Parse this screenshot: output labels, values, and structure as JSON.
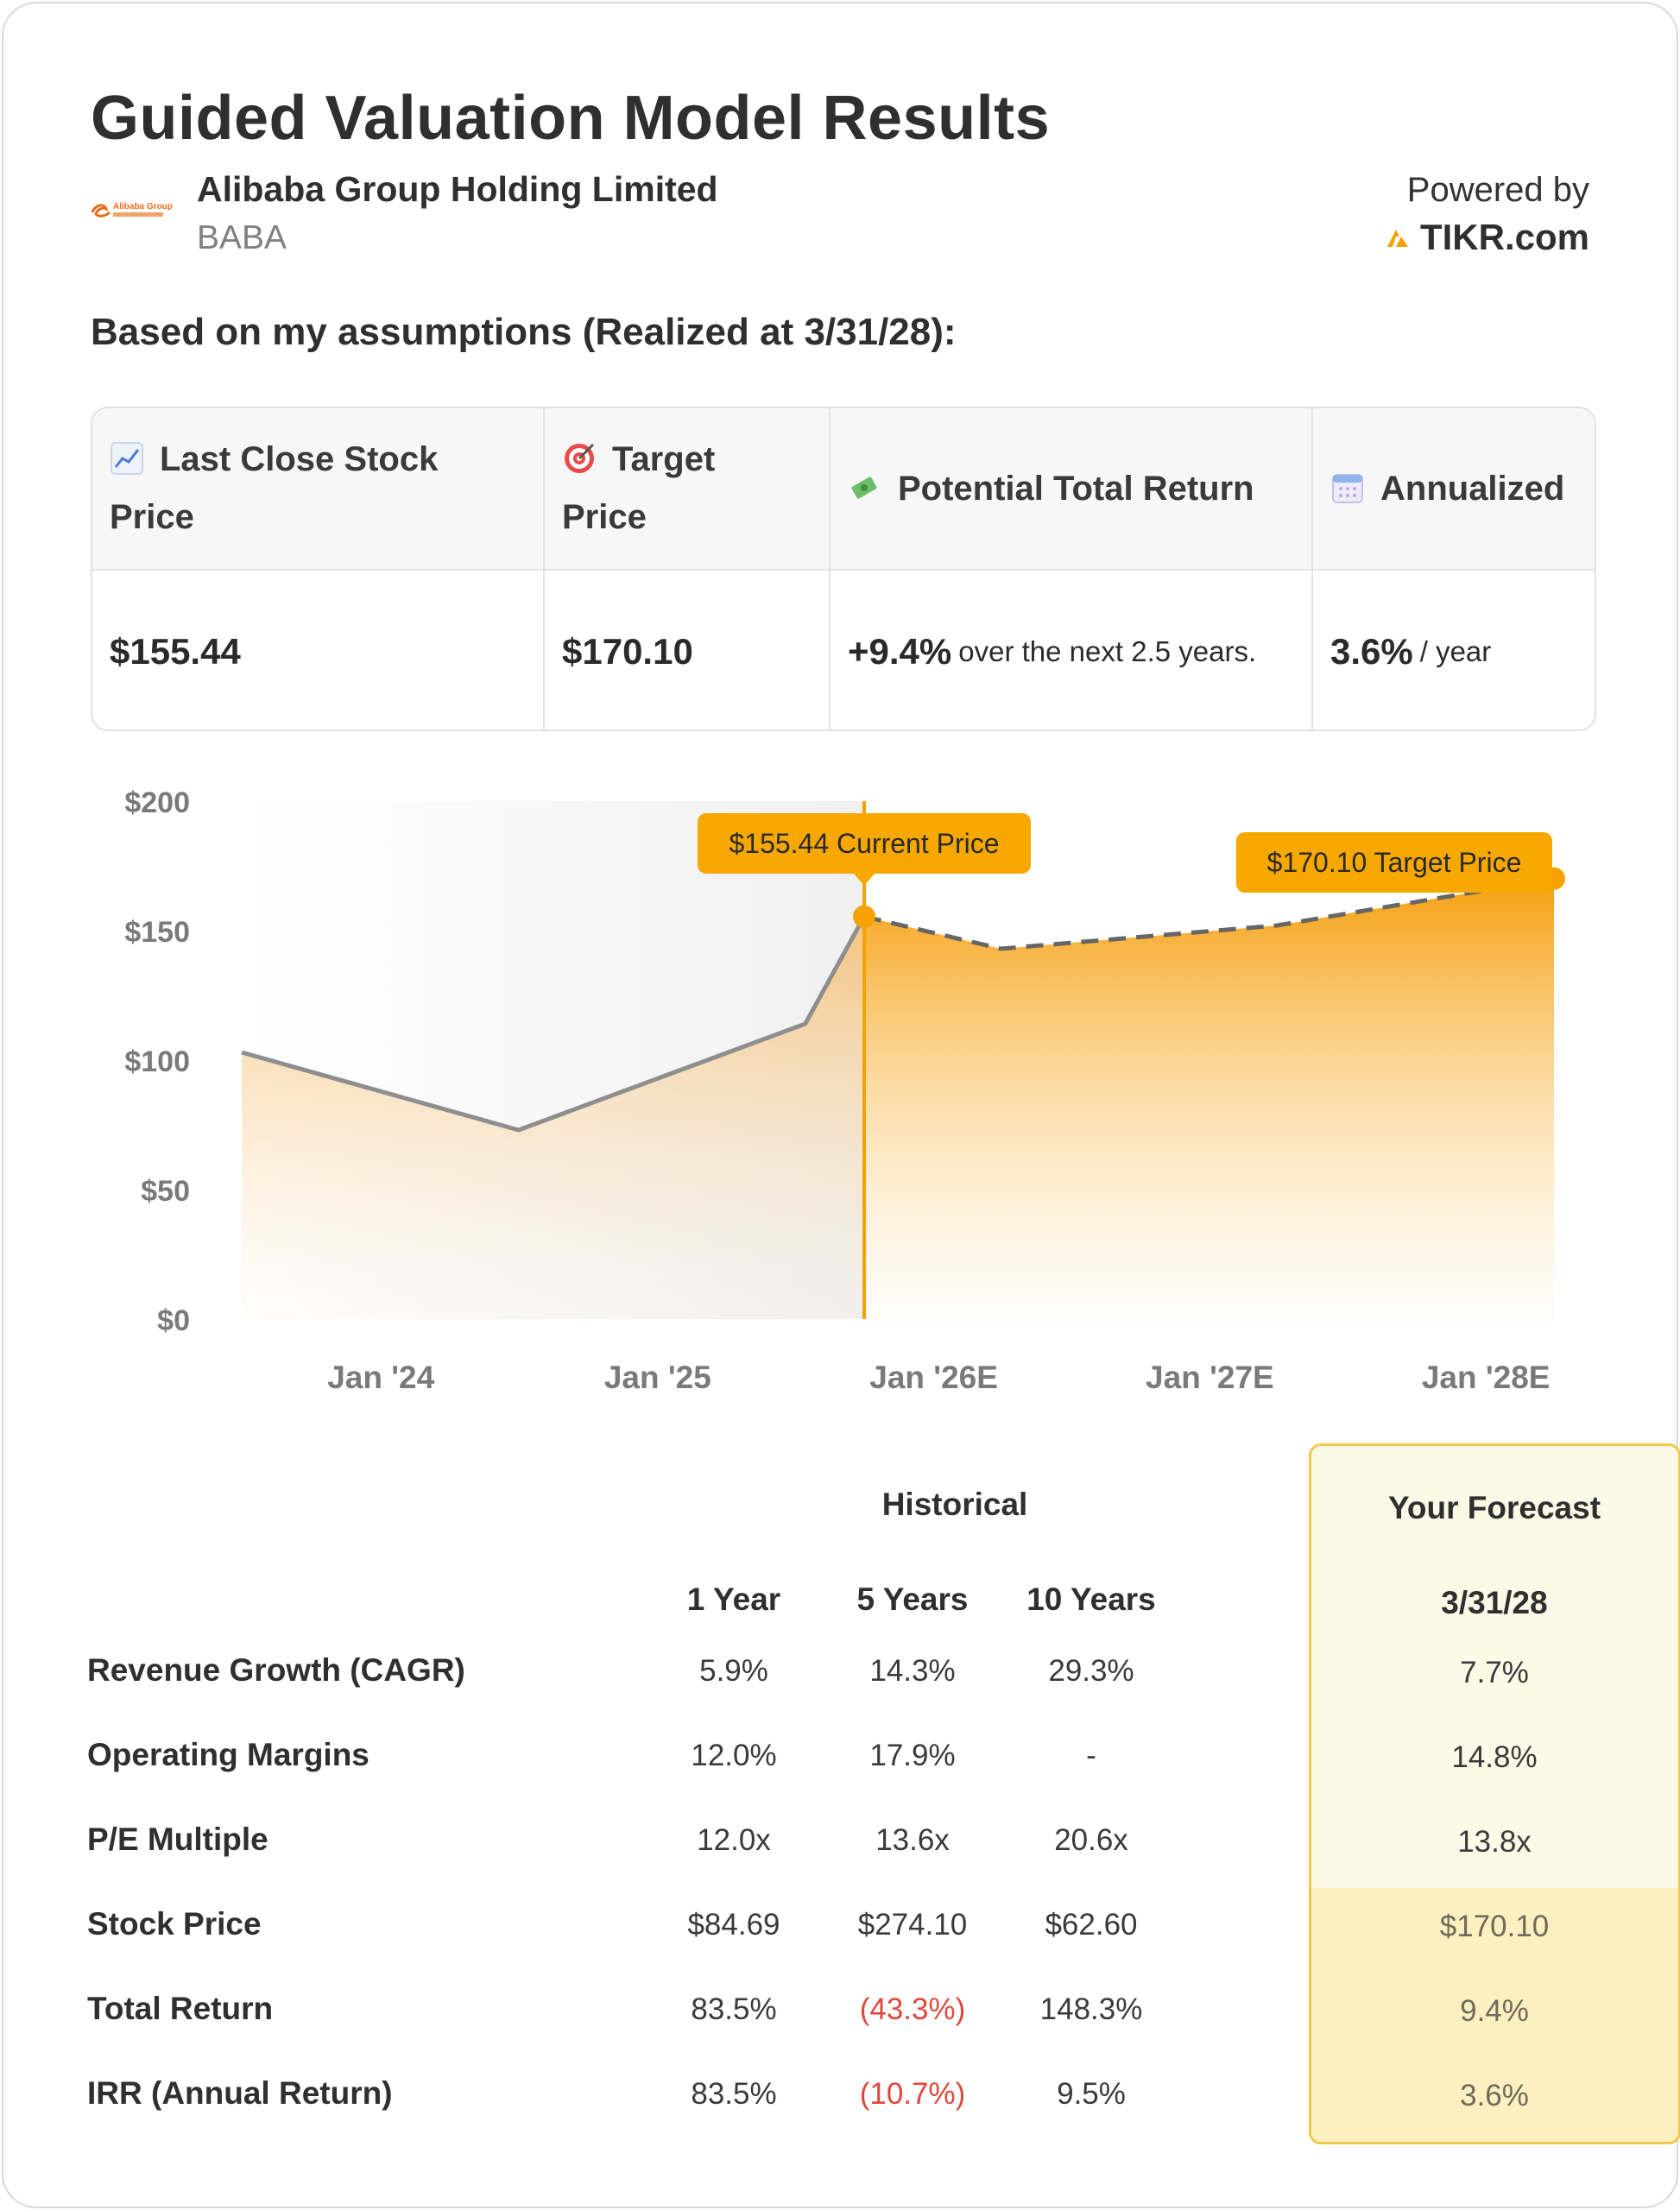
{
  "header": {
    "title": "Guided Valuation Model Results",
    "company_name": "Alibaba Group Holding Limited",
    "ticker": "BABA",
    "logo_text": "Alibaba Group",
    "powered_by": "Powered by",
    "brand": "TIKR.com",
    "subtitle": "Based on my assumptions (Realized at 3/31/28):"
  },
  "summary": {
    "headers": [
      {
        "icon": "chart-increasing-icon",
        "line1": "Last Close Stock",
        "line2": "Price"
      },
      {
        "icon": "target-icon",
        "line1": "Target",
        "line2": "Price"
      },
      {
        "icon": "money-with-wings-icon",
        "line1": "Potential Total Return",
        "line2": ""
      },
      {
        "icon": "calendar-icon",
        "line1": "Annualized",
        "line2": ""
      }
    ],
    "last_close": "$155.44",
    "target_price": "$170.10",
    "total_return": "+9.4%",
    "total_return_suffix": "over the next 2.5 years.",
    "annualized": "3.6%",
    "annualized_suffix": "/ year"
  },
  "chart_data": {
    "type": "area",
    "y_tick_labels": [
      "$200",
      "$150",
      "$100",
      "$50",
      "$0"
    ],
    "ylim": [
      0,
      200
    ],
    "x_tick_labels": [
      "Jan '24",
      "Jan '25",
      "Jan '26E",
      "Jan '27E",
      "Jan '28E"
    ],
    "historical": [
      {
        "x": "2023-07-01",
        "y": 103
      },
      {
        "x": "2024-07-01",
        "y": 73
      },
      {
        "x": "2025-07-15",
        "y": 114
      },
      {
        "x": "2025-10-01",
        "y": 155.44
      }
    ],
    "forecast": [
      {
        "x": "2025-10-01",
        "y": 155.44
      },
      {
        "x": "2026-03-31",
        "y": 143
      },
      {
        "x": "2027-03-31",
        "y": 152
      },
      {
        "x": "2028-03-31",
        "y": 170.1
      }
    ],
    "current_label": "$155.44 Current Price",
    "target_label": "$170.10 Target Price",
    "colors": {
      "accent": "#f5a200",
      "line": "#8e8e8e",
      "dash": "#666666",
      "label_bg": "#f7a800"
    }
  },
  "table": {
    "historical_label": "Historical",
    "forecast_label": "Your Forecast",
    "columns": [
      "1 Year",
      "5 Years",
      "10 Years"
    ],
    "forecast_date": "3/31/28",
    "rows": [
      {
        "label": "Revenue Growth (CAGR)",
        "values": [
          "5.9%",
          "14.3%",
          "29.3%"
        ],
        "forecast": "7.7%"
      },
      {
        "label": "Operating Margins",
        "values": [
          "12.0%",
          "17.9%",
          "-"
        ],
        "forecast": "14.8%"
      },
      {
        "label": "P/E Multiple",
        "values": [
          "12.0x",
          "13.6x",
          "20.6x"
        ],
        "forecast": "13.8x"
      },
      {
        "label": "Stock Price",
        "values": [
          "$84.69",
          "$274.10",
          "$62.60"
        ],
        "forecast": "$170.10"
      },
      {
        "label": "Total Return",
        "values": [
          "83.5%",
          "(43.3%)",
          "148.3%"
        ],
        "forecast": "9.4%"
      },
      {
        "label": "IRR (Annual Return)",
        "values": [
          "83.5%",
          "(10.7%)",
          "9.5%"
        ],
        "forecast": "3.6%"
      }
    ]
  }
}
